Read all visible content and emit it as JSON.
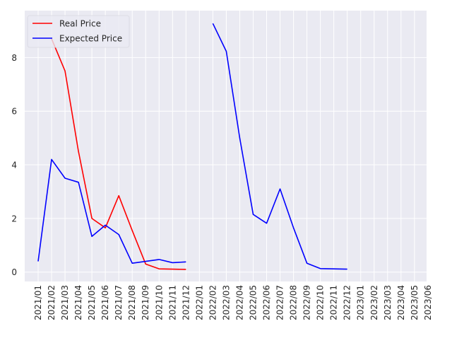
{
  "chart_data": {
    "type": "line",
    "title": "",
    "xlabel": "",
    "ylabel": "",
    "x": [
      "2021/01",
      "2021/02",
      "2021/03",
      "2021/04",
      "2021/05",
      "2021/06",
      "2021/07",
      "2021/08",
      "2021/09",
      "2021/10",
      "2021/11",
      "2021/12",
      "2022/01",
      "2022/02",
      "2022/03",
      "2022/04",
      "2022/05",
      "2022/06",
      "2022/07",
      "2022/08",
      "2022/09",
      "2022/10",
      "2022/11",
      "2022/12",
      "2023/01",
      "2023/02",
      "2023/03",
      "2023/04",
      "2023/05",
      "2023/06"
    ],
    "y_ticks": [
      0,
      2,
      4,
      6,
      8
    ],
    "ylim": [
      -0.35,
      9.75
    ],
    "grid": true,
    "legend_position": "top-left",
    "series": [
      {
        "name": "Real Price",
        "color": "#ff0000",
        "values": [
          null,
          8.7,
          7.5,
          4.5,
          2.0,
          1.65,
          2.85,
          1.55,
          0.3,
          0.12,
          0.11,
          0.1,
          null,
          null,
          null,
          null,
          null,
          null,
          null,
          null,
          null,
          null,
          null,
          null,
          null,
          null,
          null,
          null,
          null,
          null
        ]
      },
      {
        "name": "Expected Price",
        "color": "#0000ff",
        "values": [
          0.4,
          4.2,
          3.5,
          3.35,
          1.33,
          1.75,
          1.4,
          0.33,
          0.4,
          0.47,
          0.35,
          0.38,
          null,
          9.27,
          8.23,
          5.0,
          2.15,
          1.82,
          3.1,
          1.65,
          0.33,
          0.13,
          0.12,
          0.11,
          null,
          null,
          null,
          null,
          null,
          null
        ]
      }
    ]
  }
}
